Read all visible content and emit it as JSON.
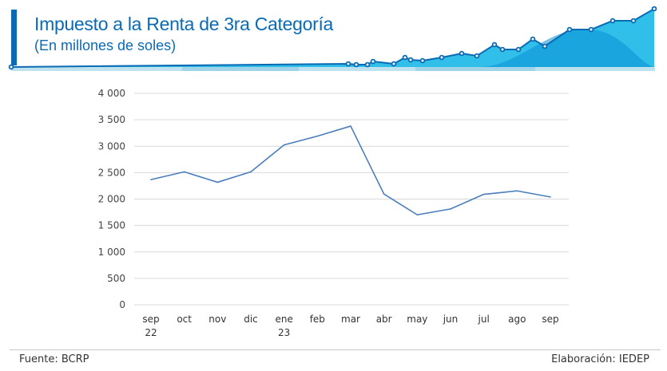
{
  "header": {
    "title": "Impuesto a la Renta de 3ra Categoría",
    "subtitle": "(En millones de soles)",
    "accent_color": "#0a6ab4",
    "banner_color": "#1aa3e0"
  },
  "chart_data": {
    "type": "line",
    "title": "Impuesto a la Renta de 3ra Categoría",
    "subtitle": "(En millones de soles)",
    "xlabel": "",
    "ylabel": "",
    "ylim": [
      0,
      4000
    ],
    "grid": true,
    "yticks": [
      0,
      500,
      1000,
      1500,
      2000,
      2500,
      3000,
      3500,
      4000
    ],
    "ytick_labels": [
      "0",
      "500",
      "1 000",
      "1 500",
      "2 000",
      "2 500",
      "3 000",
      "3 500",
      "4 000"
    ],
    "categories": [
      [
        "sep",
        "22"
      ],
      [
        "oct",
        ""
      ],
      [
        "nov",
        ""
      ],
      [
        "dic",
        ""
      ],
      [
        "ene",
        "23"
      ],
      [
        "feb",
        ""
      ],
      [
        "mar",
        ""
      ],
      [
        "abr",
        ""
      ],
      [
        "may",
        ""
      ],
      [
        "jun",
        ""
      ],
      [
        "jul",
        ""
      ],
      [
        "ago",
        ""
      ],
      [
        "sep",
        ""
      ]
    ],
    "series": [
      {
        "name": "Impuesto a la Renta de 3ra Categoría",
        "color": "#4a7ebb",
        "values": [
          2368,
          2515,
          2318,
          2515,
          3024,
          3190,
          3380,
          2095,
          1702,
          1813,
          2090,
          2155,
          2040
        ]
      }
    ]
  },
  "footer": {
    "source": "Fuente: BCRP",
    "credit": "Elaboración: IEDEP"
  }
}
